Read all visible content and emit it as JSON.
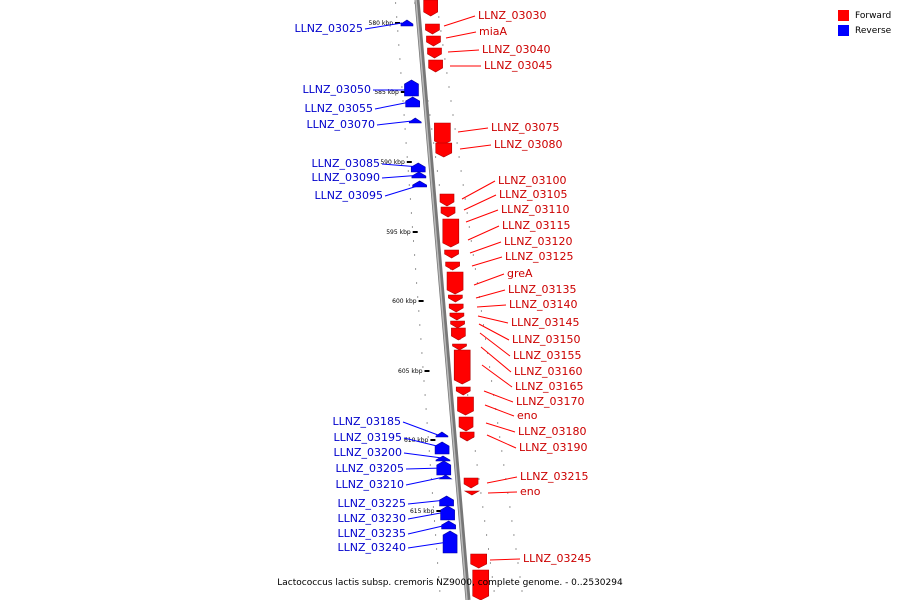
{
  "legend": {
    "forward": {
      "label": "Forward",
      "color": "#ff0000"
    },
    "reverse": {
      "label": "Reverse",
      "color": "#0000ff"
    }
  },
  "caption": "Lactococcus lactis subsp. cremoris NZ9000, complete genome. - 0..2530294",
  "ticks": [
    "580 kbp",
    "585 kbp",
    "590 kbp",
    "595 kbp",
    "600 kbp",
    "605 kbp",
    "610 kbp",
    "615 kbp"
  ],
  "forward_genes": [
    {
      "name": "LLNZ_03030"
    },
    {
      "name": "miaA"
    },
    {
      "name": "LLNZ_03040"
    },
    {
      "name": "LLNZ_03045"
    },
    {
      "name": "LLNZ_03075"
    },
    {
      "name": "LLNZ_03080"
    },
    {
      "name": "LLNZ_03100"
    },
    {
      "name": "LLNZ_03105"
    },
    {
      "name": "LLNZ_03110"
    },
    {
      "name": "LLNZ_03115"
    },
    {
      "name": "LLNZ_03120"
    },
    {
      "name": "LLNZ_03125"
    },
    {
      "name": "greA"
    },
    {
      "name": "LLNZ_03135"
    },
    {
      "name": "LLNZ_03140"
    },
    {
      "name": "LLNZ_03145"
    },
    {
      "name": "LLNZ_03150"
    },
    {
      "name": "LLNZ_03155"
    },
    {
      "name": "LLNZ_03160"
    },
    {
      "name": "LLNZ_03165"
    },
    {
      "name": "LLNZ_03170"
    },
    {
      "name": "eno"
    },
    {
      "name": "LLNZ_03180"
    },
    {
      "name": "LLNZ_03190"
    },
    {
      "name": "LLNZ_03215"
    },
    {
      "name": "eno"
    },
    {
      "name": "LLNZ_03245"
    }
  ],
  "reverse_genes": [
    {
      "name": "LLNZ_03025"
    },
    {
      "name": "LLNZ_03050"
    },
    {
      "name": "LLNZ_03055"
    },
    {
      "name": "LLNZ_03070"
    },
    {
      "name": "LLNZ_03085"
    },
    {
      "name": "LLNZ_03090"
    },
    {
      "name": "LLNZ_03095"
    },
    {
      "name": "LLNZ_03185"
    },
    {
      "name": "LLNZ_03195"
    },
    {
      "name": "LLNZ_03200"
    },
    {
      "name": "LLNZ_03205"
    },
    {
      "name": "LLNZ_03210"
    },
    {
      "name": "LLNZ_03225"
    },
    {
      "name": "LLNZ_03230"
    },
    {
      "name": "LLNZ_03235"
    },
    {
      "name": "LLNZ_03240"
    }
  ]
}
